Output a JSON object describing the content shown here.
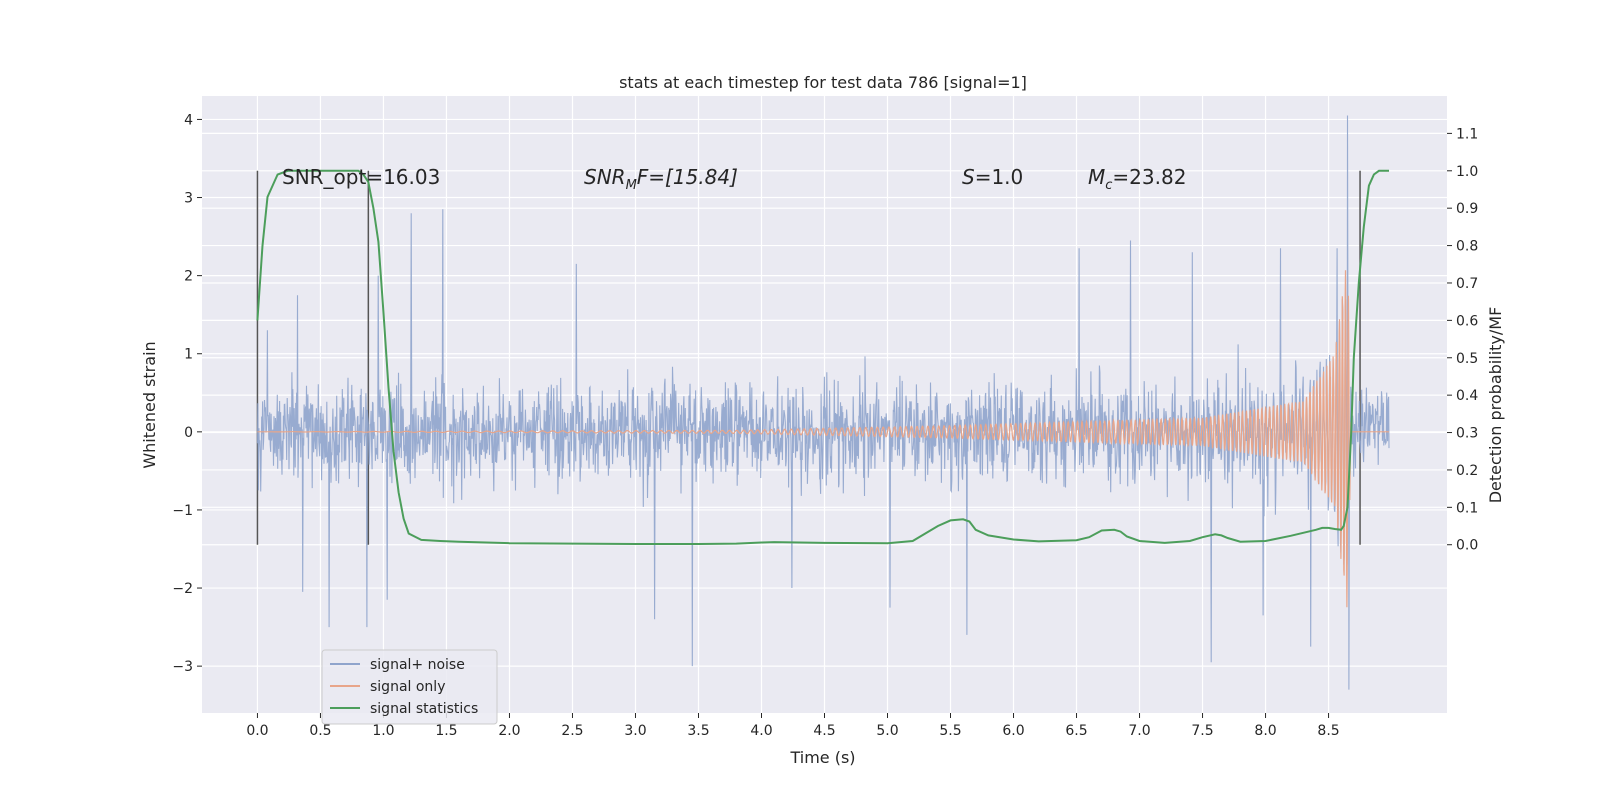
{
  "chart_data": {
    "type": "line",
    "title": "stats at each timestep for test data 786 [signal=1]",
    "xlabel": "Time (s)",
    "ylabel": "Whitened strain",
    "ylabel_right": "Detection probability/MF",
    "xlim": [
      -0.44,
      9.44
    ],
    "ylim": [
      -3.6,
      4.3
    ],
    "ylim_right": [
      -0.45,
      1.2
    ],
    "x_ticks": [
      "0.0",
      "0.5",
      "1.0",
      "1.5",
      "2.0",
      "2.5",
      "3.0",
      "3.5",
      "4.0",
      "4.5",
      "5.0",
      "5.5",
      "6.0",
      "6.5",
      "7.0",
      "7.5",
      "8.0",
      "8.5"
    ],
    "y_ticks": [
      "4",
      "3",
      "2",
      "1",
      "0",
      "−1",
      "−2",
      "−3"
    ],
    "y_ticks_right": [
      "1.1",
      "1.0",
      "0.9",
      "0.8",
      "0.7",
      "0.6",
      "0.5",
      "0.4",
      "0.3",
      "0.2",
      "0.1",
      "0.0"
    ],
    "grid": true,
    "legend_position": "lower-left",
    "annotations": {
      "snr_opt": "SNR_opt=16.03",
      "snr_mf_prefix": "SNR",
      "snr_mf_sub": "M",
      "snr_mf_suffix": "F=[15.84]",
      "s_symbol": "S",
      "s_value": "=1.0",
      "mc_symbol": "M",
      "mc_sub": "c",
      "mc_value": "=23.82"
    },
    "vertical_lines_x": [
      0.0,
      0.88,
      8.75
    ],
    "series": [
      {
        "name": "signal+ noise",
        "color": "#8fa4cc",
        "x_range": [
          0.0,
          8.98
        ],
        "typical_amplitude": [
          -1.0,
          1.0
        ],
        "peaks": [
          {
            "x": 0.08,
            "y": 1.3
          },
          {
            "x": 0.32,
            "y": 1.75
          },
          {
            "x": 0.36,
            "y": -2.05
          },
          {
            "x": 0.57,
            "y": -2.5
          },
          {
            "x": 0.87,
            "y": -2.5
          },
          {
            "x": 0.96,
            "y": 2.0
          },
          {
            "x": 1.22,
            "y": 2.8
          },
          {
            "x": 1.47,
            "y": 2.85
          },
          {
            "x": 1.03,
            "y": -2.15
          },
          {
            "x": 2.53,
            "y": 2.15
          },
          {
            "x": 3.15,
            "y": -2.4
          },
          {
            "x": 3.45,
            "y": -3.0
          },
          {
            "x": 4.24,
            "y": -2.0
          },
          {
            "x": 5.02,
            "y": -2.25
          },
          {
            "x": 5.63,
            "y": -2.6
          },
          {
            "x": 6.52,
            "y": 2.35
          },
          {
            "x": 6.93,
            "y": 2.45
          },
          {
            "x": 7.42,
            "y": 2.3
          },
          {
            "x": 7.57,
            "y": -2.95
          },
          {
            "x": 7.98,
            "y": -2.35
          },
          {
            "x": 8.12,
            "y": 2.35
          },
          {
            "x": 8.36,
            "y": -2.75
          },
          {
            "x": 8.57,
            "y": 2.35
          },
          {
            "x": 8.65,
            "y": 4.05
          },
          {
            "x": 8.66,
            "y": -3.3
          }
        ]
      },
      {
        "name": "signal only",
        "color": "#e8a58a",
        "description_points": [
          {
            "x": 0.0,
            "amplitude": 0.0
          },
          {
            "x": 3.8,
            "amplitude": 0.02
          },
          {
            "x": 5.5,
            "amplitude": 0.08
          },
          {
            "x": 7.5,
            "amplitude": 0.18
          },
          {
            "x": 8.3,
            "amplitude": 0.4
          },
          {
            "x": 8.55,
            "amplitude": 1.0
          },
          {
            "x": 8.65,
            "amplitude": 2.3
          },
          {
            "x": 8.68,
            "amplitude": 0.0
          },
          {
            "x": 8.98,
            "amplitude": 0.0
          }
        ]
      },
      {
        "name": "signal statistics",
        "color": "#4c9e5b",
        "axis": "right",
        "x": [
          0.0,
          0.04,
          0.08,
          0.16,
          0.24,
          0.32,
          0.4,
          0.5,
          0.6,
          0.7,
          0.8,
          0.84,
          0.88,
          0.92,
          0.96,
          1.0,
          1.04,
          1.08,
          1.12,
          1.16,
          1.2,
          1.3,
          1.45,
          1.6,
          2.0,
          3.0,
          3.5,
          3.8,
          4.0,
          4.1,
          4.5,
          5.0,
          5.2,
          5.3,
          5.4,
          5.5,
          5.6,
          5.65,
          5.7,
          5.8,
          6.0,
          6.2,
          6.5,
          6.6,
          6.7,
          6.8,
          6.85,
          6.9,
          7.0,
          7.2,
          7.4,
          7.5,
          7.6,
          7.65,
          7.7,
          7.8,
          8.0,
          8.2,
          8.4,
          8.45,
          8.5,
          8.55,
          8.6,
          8.62,
          8.65,
          8.68,
          8.7,
          8.74,
          8.78,
          8.82,
          8.86,
          8.9,
          8.98
        ],
        "y": [
          0.6,
          0.8,
          0.93,
          0.99,
          1.0,
          1.0,
          1.0,
          1.0,
          1.0,
          1.0,
          1.0,
          0.99,
          0.97,
          0.9,
          0.81,
          0.62,
          0.42,
          0.25,
          0.14,
          0.07,
          0.03,
          0.013,
          0.01,
          0.008,
          0.004,
          0.002,
          0.002,
          0.003,
          0.006,
          0.007,
          0.005,
          0.004,
          0.01,
          0.03,
          0.05,
          0.065,
          0.068,
          0.062,
          0.04,
          0.025,
          0.014,
          0.009,
          0.012,
          0.02,
          0.038,
          0.04,
          0.035,
          0.022,
          0.01,
          0.005,
          0.01,
          0.02,
          0.028,
          0.025,
          0.018,
          0.008,
          0.01,
          0.024,
          0.04,
          0.045,
          0.045,
          0.042,
          0.04,
          0.05,
          0.1,
          0.3,
          0.5,
          0.7,
          0.85,
          0.96,
          0.99,
          1.0,
          1.0
        ]
      }
    ]
  }
}
